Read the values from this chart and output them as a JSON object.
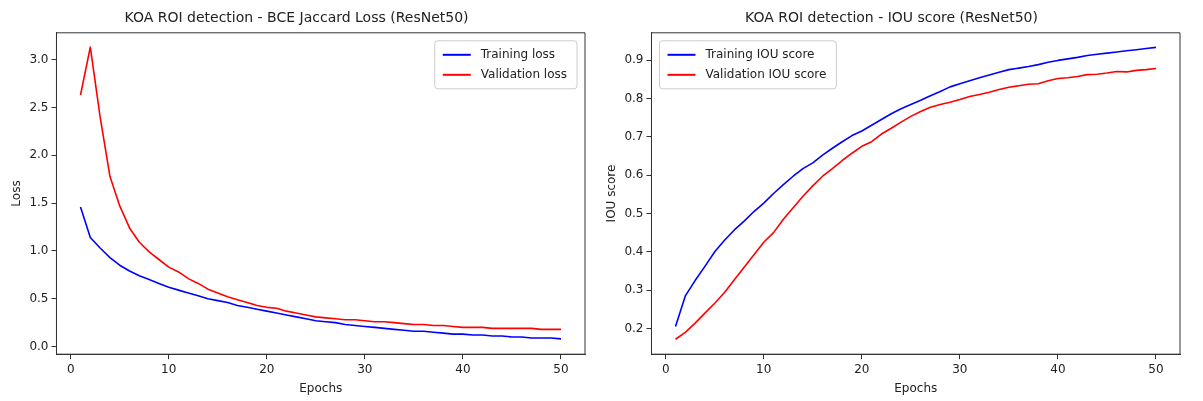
{
  "chart_data": [
    {
      "type": "line",
      "title": "KOA ROI detection - BCE Jaccard Loss (ResNet50)",
      "xlabel": "Epochs",
      "ylabel": "Loss",
      "x": [
        1,
        2,
        3,
        4,
        5,
        6,
        7,
        8,
        9,
        10,
        11,
        12,
        13,
        14,
        15,
        16,
        17,
        18,
        19,
        20,
        21,
        22,
        23,
        24,
        25,
        26,
        27,
        28,
        29,
        30,
        31,
        32,
        33,
        34,
        35,
        36,
        37,
        38,
        39,
        40,
        41,
        42,
        43,
        44,
        45,
        46,
        47,
        48,
        49,
        50
      ],
      "series": [
        {
          "name": "Training loss",
          "color": "#0000ff",
          "values": [
            1.46,
            1.14,
            1.03,
            0.93,
            0.85,
            0.79,
            0.74,
            0.7,
            0.66,
            0.62,
            0.59,
            0.56,
            0.53,
            0.5,
            0.48,
            0.46,
            0.43,
            0.41,
            0.39,
            0.37,
            0.35,
            0.33,
            0.31,
            0.29,
            0.27,
            0.26,
            0.25,
            0.23,
            0.22,
            0.21,
            0.2,
            0.19,
            0.18,
            0.17,
            0.16,
            0.16,
            0.15,
            0.14,
            0.13,
            0.13,
            0.12,
            0.12,
            0.11,
            0.11,
            0.1,
            0.1,
            0.09,
            0.09,
            0.09,
            0.08
          ]
        },
        {
          "name": "Validation loss",
          "color": "#ff0000",
          "values": [
            2.63,
            3.13,
            2.4,
            1.78,
            1.47,
            1.24,
            1.09,
            0.99,
            0.91,
            0.83,
            0.78,
            0.71,
            0.66,
            0.6,
            0.56,
            0.52,
            0.49,
            0.46,
            0.43,
            0.41,
            0.4,
            0.37,
            0.35,
            0.33,
            0.31,
            0.3,
            0.29,
            0.28,
            0.28,
            0.27,
            0.26,
            0.26,
            0.25,
            0.24,
            0.23,
            0.23,
            0.22,
            0.22,
            0.21,
            0.2,
            0.2,
            0.2,
            0.19,
            0.19,
            0.19,
            0.19,
            0.19,
            0.18,
            0.18,
            0.18
          ]
        }
      ],
      "xlim": [
        -1.45,
        52.45
      ],
      "xticks": [
        0,
        10,
        20,
        30,
        40,
        50
      ],
      "ylim": [
        -0.08,
        3.28
      ],
      "yticks": [
        {
          "value": 0,
          "label": "0.0"
        },
        0.5,
        {
          "value": 1,
          "label": "1.0"
        },
        1.5,
        {
          "value": 2,
          "label": "2.0"
        },
        2.5,
        {
          "value": 3,
          "label": "3.0"
        }
      ],
      "grid": false,
      "legend": "top right",
      "marker": "none",
      "line_style": "solid"
    },
    {
      "type": "line",
      "title": "KOA ROI detection - IOU score (ResNet50)",
      "xlabel": "Epochs",
      "ylabel": "IOU score",
      "x": [
        1,
        2,
        3,
        4,
        5,
        6,
        7,
        8,
        9,
        10,
        11,
        12,
        13,
        14,
        15,
        16,
        17,
        18,
        19,
        20,
        21,
        22,
        23,
        24,
        25,
        26,
        27,
        28,
        29,
        30,
        31,
        32,
        33,
        34,
        35,
        36,
        37,
        38,
        39,
        40,
        41,
        42,
        43,
        44,
        45,
        46,
        47,
        48,
        49,
        50
      ],
      "series": [
        {
          "name": "Training IOU score",
          "color": "#0000ff",
          "values": [
            0.205,
            0.285,
            0.325,
            0.362,
            0.4,
            0.43,
            0.457,
            0.48,
            0.505,
            0.527,
            0.552,
            0.575,
            0.597,
            0.617,
            0.632,
            0.652,
            0.67,
            0.687,
            0.703,
            0.715,
            0.73,
            0.745,
            0.76,
            0.773,
            0.784,
            0.795,
            0.807,
            0.818,
            0.83,
            0.838,
            0.846,
            0.854,
            0.861,
            0.868,
            0.875,
            0.879,
            0.883,
            0.888,
            0.894,
            0.899,
            0.903,
            0.907,
            0.912,
            0.915,
            0.918,
            0.921,
            0.924,
            0.927,
            0.93,
            0.933
          ]
        },
        {
          "name": "Validation IOU score",
          "color": "#ff0000",
          "values": [
            0.172,
            0.19,
            0.214,
            0.24,
            0.266,
            0.294,
            0.327,
            0.36,
            0.392,
            0.425,
            0.45,
            0.485,
            0.515,
            0.545,
            0.572,
            0.597,
            0.617,
            0.638,
            0.657,
            0.675,
            0.687,
            0.707,
            0.722,
            0.738,
            0.753,
            0.766,
            0.777,
            0.784,
            0.79,
            0.797,
            0.805,
            0.81,
            0.816,
            0.823,
            0.829,
            0.833,
            0.837,
            0.838,
            0.846,
            0.852,
            0.854,
            0.857,
            0.862,
            0.863,
            0.866,
            0.87,
            0.869,
            0.873,
            0.875,
            0.878
          ]
        }
      ],
      "xlim": [
        -1.45,
        52.45
      ],
      "xticks": [
        0,
        10,
        20,
        30,
        40,
        50
      ],
      "ylim": [
        0.133,
        0.971
      ],
      "yticks": [
        0.2,
        0.3,
        0.4,
        0.5,
        0.6,
        0.7,
        0.8,
        0.9
      ],
      "grid": false,
      "legend": "top left",
      "marker": "none",
      "line_style": "solid"
    }
  ]
}
